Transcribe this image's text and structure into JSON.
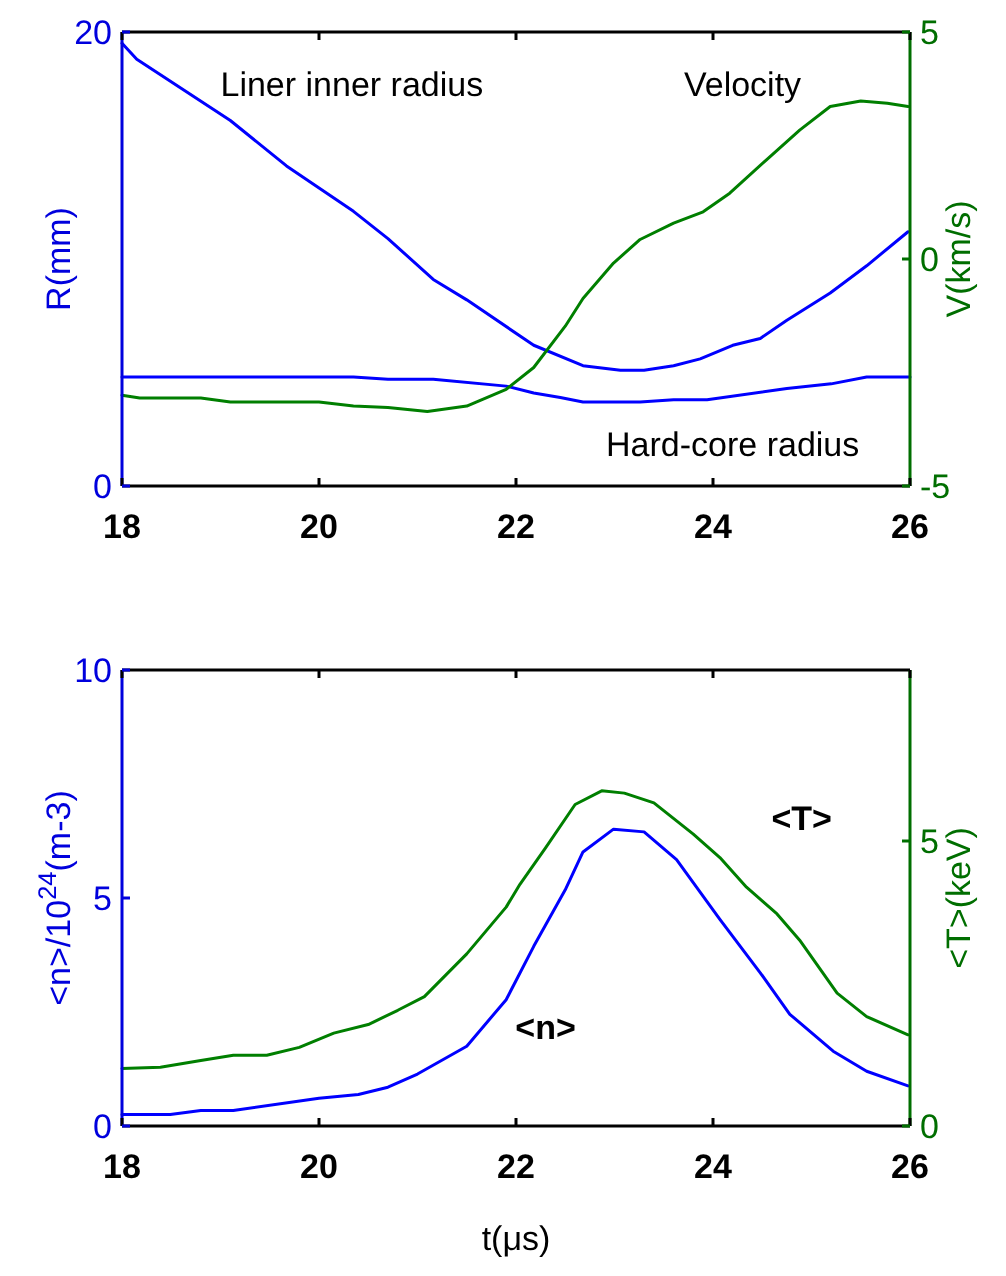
{
  "chart_data": [
    {
      "type": "line",
      "ylabel": "R(mm)",
      "y2label": "V(km/s)",
      "xlim": [
        18,
        26
      ],
      "xticks": [
        18,
        20,
        22,
        24,
        26
      ],
      "ylim": [
        0,
        20
      ],
      "yticks": [
        0,
        20
      ],
      "y2lim": [
        -5,
        5
      ],
      "y2ticks": [
        -5,
        0,
        5
      ],
      "grid": false,
      "series": [
        {
          "name": "Liner inner radius",
          "color": "#0000ff",
          "x": [
            18,
            18.15,
            19.1,
            19.67,
            20.35,
            20.7,
            21.16,
            21.5,
            22.18,
            22.68,
            23.06,
            23.3,
            23.6,
            23.87,
            24.2,
            24.48,
            24.75,
            25.19,
            25.56,
            25.98
          ],
          "values": [
            19.5,
            18.8,
            16.1,
            14.1,
            12.1,
            10.9,
            9.1,
            8.2,
            6.2,
            5.3,
            5.1,
            5.1,
            5.3,
            5.6,
            6.2,
            6.5,
            7.3,
            8.5,
            9.7,
            11.2
          ]
        },
        {
          "name": "Hard-core radius",
          "color": "#0000ff",
          "x": [
            18,
            20.35,
            20.7,
            21.16,
            21.9,
            22.18,
            22.45,
            22.68,
            23.26,
            23.6,
            23.94,
            24.75,
            25.2,
            25.56,
            26
          ],
          "values": [
            4.8,
            4.8,
            4.7,
            4.7,
            4.4,
            4.1,
            3.9,
            3.7,
            3.7,
            3.8,
            3.8,
            4.3,
            4.5,
            4.8,
            4.8
          ]
        },
        {
          "name": "Velocity",
          "color": "#007f00",
          "axis": "y2",
          "x": [
            18,
            18.18,
            18.8,
            19.1,
            20,
            20.35,
            20.7,
            21.1,
            21.5,
            21.9,
            22.18,
            22.5,
            22.68,
            22.99,
            23.26,
            23.6,
            23.9,
            24.17,
            24.54,
            24.88,
            25.19,
            25.5,
            25.77,
            25.98
          ],
          "values": [
            -3,
            -3.06,
            -3.06,
            -3.15,
            -3.15,
            -3.24,
            -3.27,
            -3.36,
            -3.24,
            -2.87,
            -2.39,
            -1.48,
            -0.87,
            -0.09,
            0.43,
            0.79,
            1.04,
            1.45,
            2.18,
            2.84,
            3.36,
            3.48,
            3.43,
            3.36
          ]
        }
      ]
    },
    {
      "type": "line",
      "xlabel": "t(μs)",
      "ylabel": "<n>/10$^{24}$(m-3)",
      "y2label": "<T>(keV)",
      "xlim": [
        18,
        26
      ],
      "xticks": [
        18,
        20,
        22,
        24,
        26
      ],
      "ylim": [
        0,
        10
      ],
      "yticks": [
        0,
        5,
        10
      ],
      "y2lim": [
        0,
        8
      ],
      "y2ticks": [
        0,
        5
      ],
      "grid": false,
      "series": [
        {
          "name": "<n>",
          "color": "#0000ff",
          "x": [
            18,
            18.49,
            18.8,
            19.13,
            20,
            20.4,
            20.7,
            21,
            21.5,
            21.9,
            22.18,
            22.5,
            22.68,
            22.99,
            23.3,
            23.63,
            24.07,
            24.48,
            24.78,
            25.22,
            25.56,
            25.98
          ],
          "values": [
            0.25,
            0.25,
            0.34,
            0.34,
            0.61,
            0.69,
            0.85,
            1.14,
            1.75,
            2.77,
            3.94,
            5.18,
            6.01,
            6.51,
            6.45,
            5.84,
            4.53,
            3.36,
            2.45,
            1.64,
            1.2,
            0.88
          ]
        },
        {
          "name": "<T>",
          "color": "#007f00",
          "axis": "y2",
          "x": [
            18,
            18.39,
            18.8,
            19.13,
            19.47,
            19.8,
            20.15,
            20.5,
            20.8,
            21.07,
            21.5,
            21.9,
            22.04,
            22.3,
            22.6,
            22.87,
            23.1,
            23.4,
            23.8,
            24.07,
            24.34,
            24.65,
            24.88,
            25.26,
            25.56,
            25.98
          ],
          "values": [
            1.01,
            1.03,
            1.15,
            1.24,
            1.24,
            1.38,
            1.63,
            1.78,
            2.03,
            2.27,
            3.02,
            3.84,
            4.24,
            4.88,
            5.64,
            5.88,
            5.84,
            5.67,
            5.12,
            4.71,
            4.19,
            3.72,
            3.26,
            2.33,
            1.92,
            1.6
          ]
        }
      ]
    }
  ]
}
